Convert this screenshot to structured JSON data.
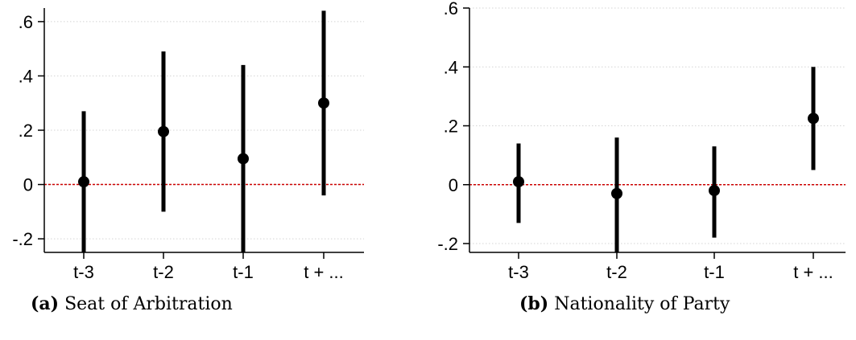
{
  "chart_data": [
    {
      "type": "scatter",
      "subtype": "coefficient-plot-with-confidence-intervals",
      "caption_letter": "(a)",
      "caption_text": "Seat of Arbitration",
      "categories": [
        "t-3",
        "t-2",
        "t-1",
        "t + ..."
      ],
      "points": [
        {
          "x": "t-3",
          "estimate": 0.01,
          "ci_low": -0.25,
          "ci_high": 0.27
        },
        {
          "x": "t-2",
          "estimate": 0.195,
          "ci_low": -0.1,
          "ci_high": 0.49
        },
        {
          "x": "t-1",
          "estimate": 0.095,
          "ci_low": -0.25,
          "ci_high": 0.44
        },
        {
          "x": "t + ...",
          "estimate": 0.3,
          "ci_low": -0.04,
          "ci_high": 0.64
        }
      ],
      "yticks": [
        -0.2,
        0,
        0.2,
        0.4,
        0.6
      ],
      "ytick_labels": [
        "-.2",
        "0",
        ".2",
        ".4",
        ".6"
      ],
      "ylim": [
        -0.25,
        0.65
      ],
      "reference_line": {
        "y": 0,
        "style": "dashed",
        "color": "#cc0000"
      },
      "grid": "horizontal-dotted",
      "marker_color": "#000000"
    },
    {
      "type": "scatter",
      "subtype": "coefficient-plot-with-confidence-intervals",
      "caption_letter": "(b)",
      "caption_text": "Nationality of Party",
      "categories": [
        "t-3",
        "t-2",
        "t-1",
        "t + ..."
      ],
      "points": [
        {
          "x": "t-3",
          "estimate": 0.01,
          "ci_low": -0.13,
          "ci_high": 0.14
        },
        {
          "x": "t-2",
          "estimate": -0.03,
          "ci_low": -0.23,
          "ci_high": 0.16
        },
        {
          "x": "t-1",
          "estimate": -0.02,
          "ci_low": -0.18,
          "ci_high": 0.13
        },
        {
          "x": "t + ...",
          "estimate": 0.225,
          "ci_low": 0.05,
          "ci_high": 0.4
        }
      ],
      "yticks": [
        -0.2,
        0,
        0.2,
        0.4,
        0.6
      ],
      "ytick_labels": [
        "-.2",
        "0",
        ".2",
        ".4",
        ".6"
      ],
      "ylim": [
        -0.23,
        0.6
      ],
      "reference_line": {
        "y": 0,
        "style": "dashed",
        "color": "#cc0000"
      },
      "grid": "horizontal-dotted",
      "marker_color": "#000000"
    }
  ]
}
